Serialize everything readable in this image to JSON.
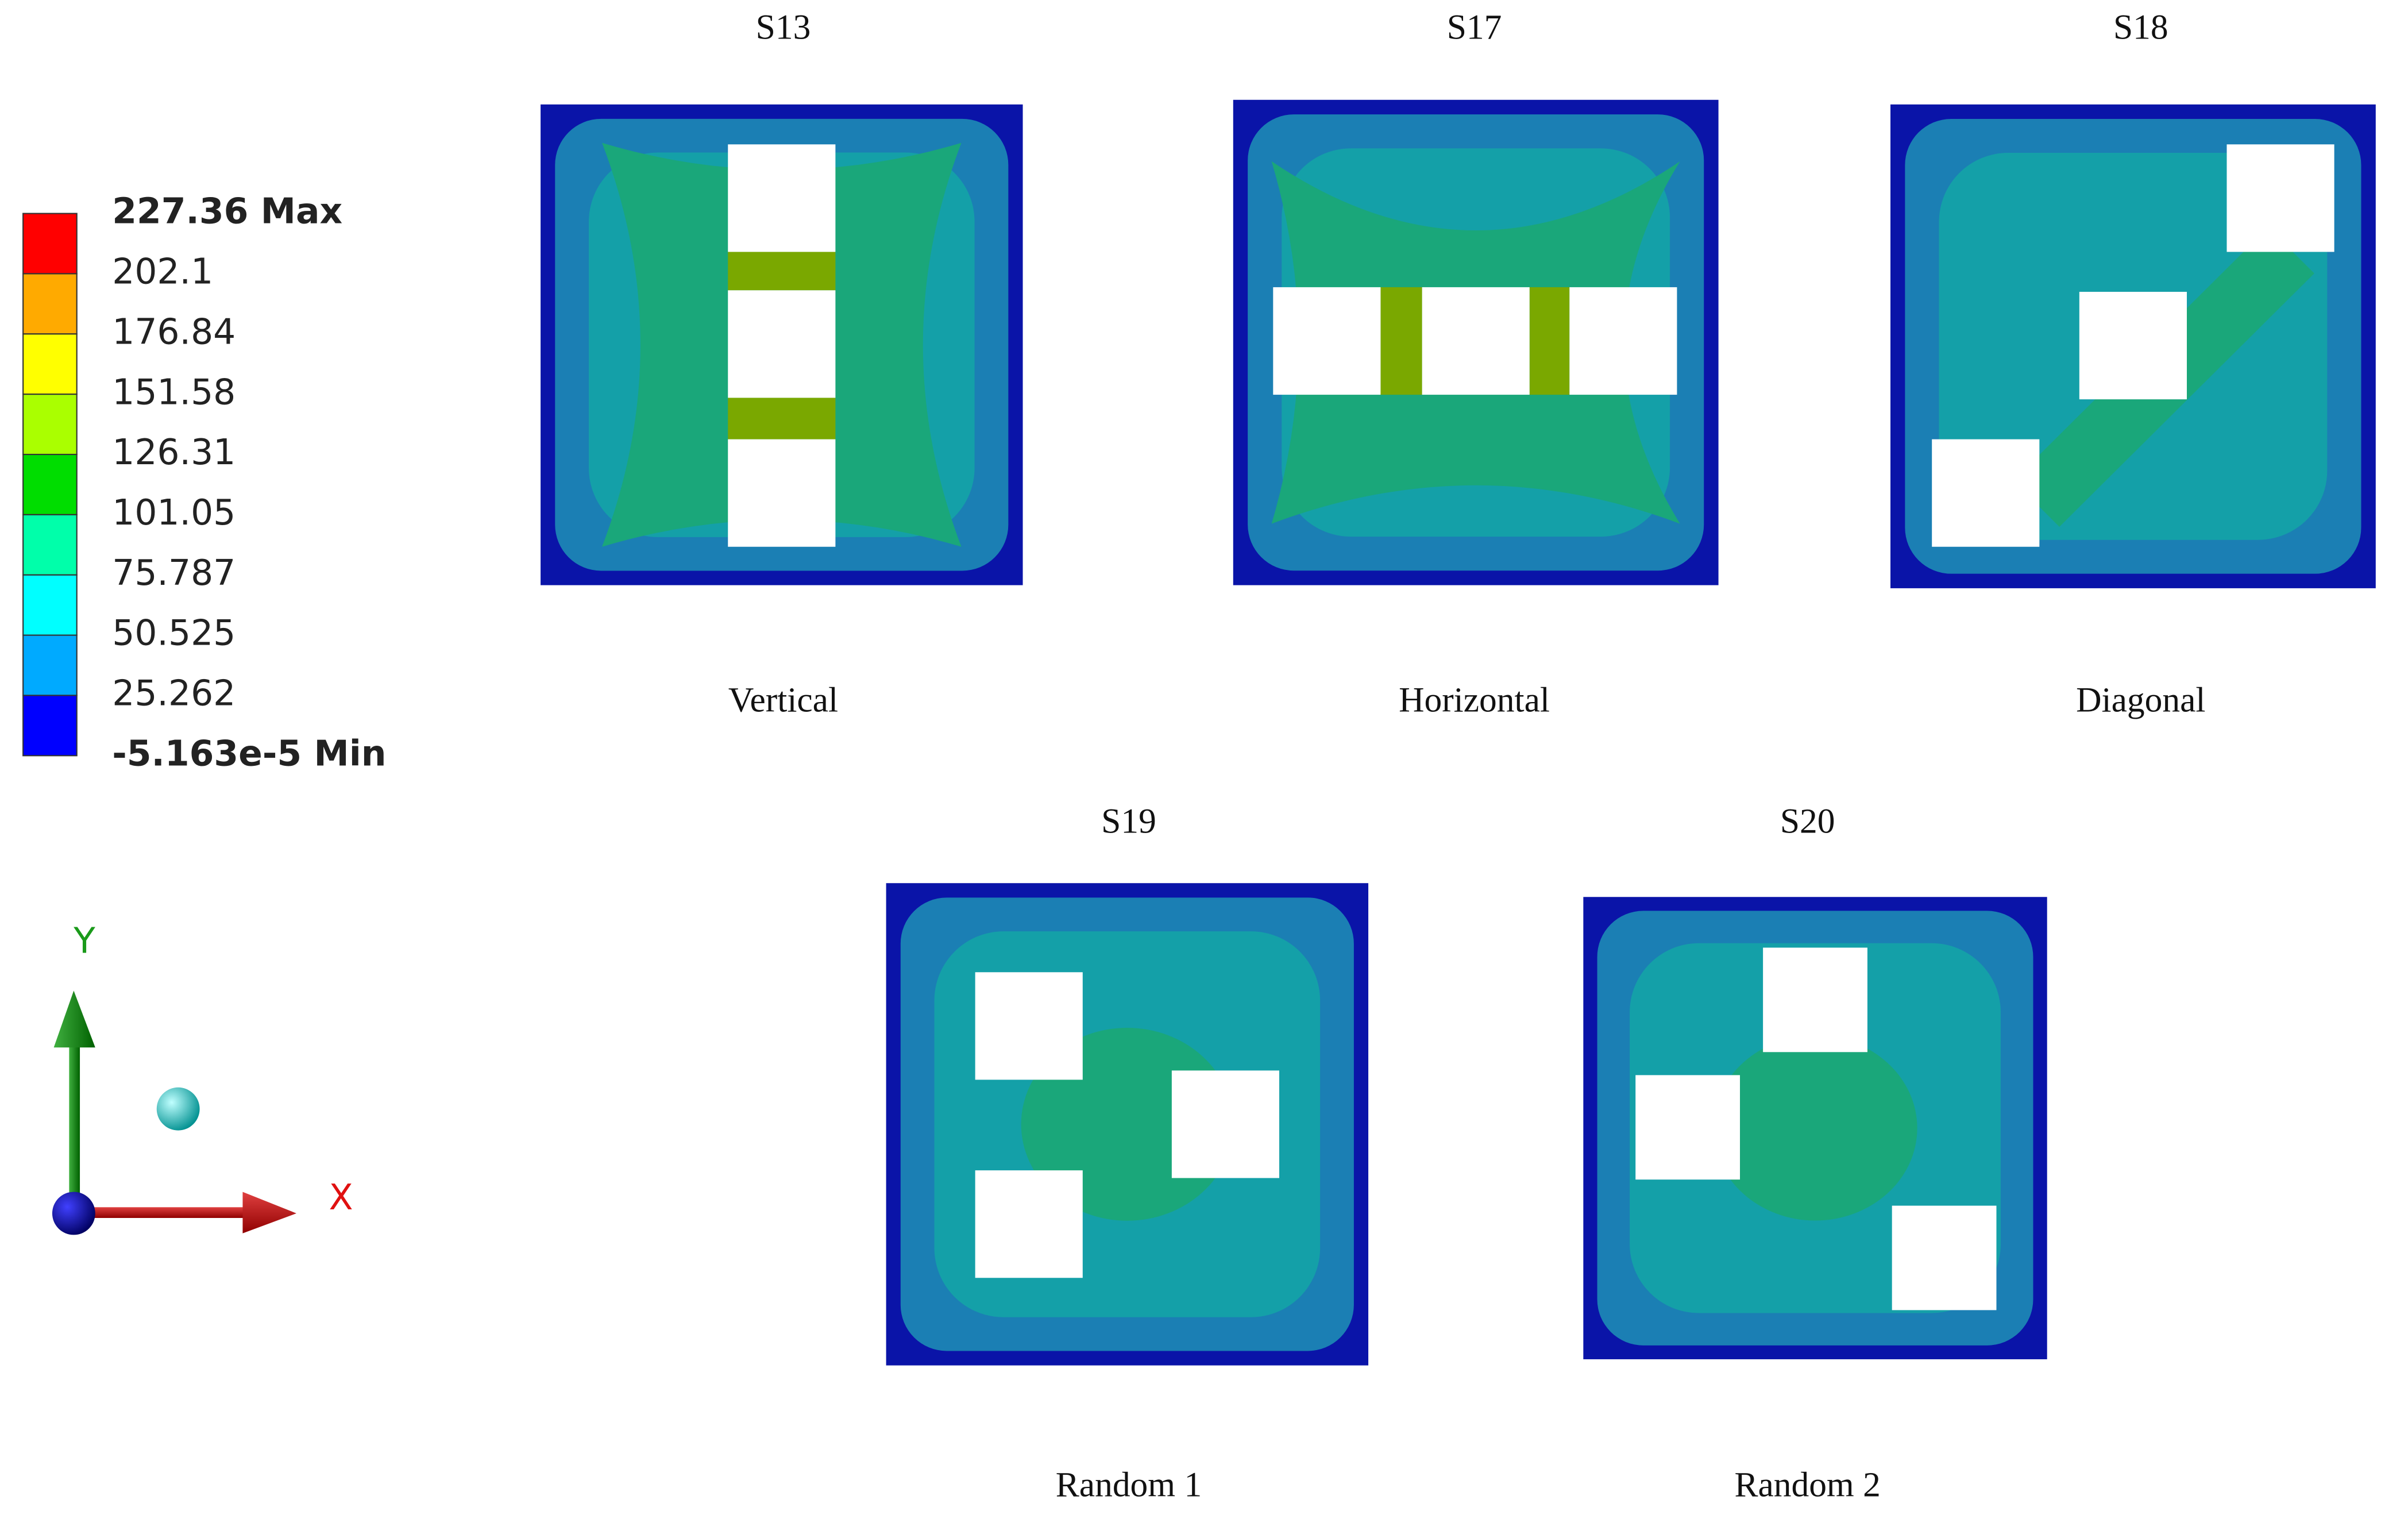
{
  "legend": {
    "labels": [
      "227.36 Max",
      "202.1",
      "176.84",
      "151.58",
      "126.31",
      "101.05",
      "75.787",
      "50.525",
      "25.262",
      "-5.163e-5 Min"
    ],
    "colors": [
      "#ff0000",
      "#ffaa00",
      "#ffff00",
      "#aaff00",
      "#00dd00",
      "#00ffaa",
      "#00ffff",
      "#00aaff",
      "#0000ff"
    ]
  },
  "axes": {
    "x": "X",
    "y": "Y"
  },
  "panels": [
    {
      "title": "S13",
      "caption": "Vertical"
    },
    {
      "title": "S17",
      "caption": "Horizontal"
    },
    {
      "title": "S18",
      "caption": "Diagonal"
    },
    {
      "title": "S19",
      "caption": "Random 1"
    },
    {
      "title": "S20",
      "caption": "Random 2"
    }
  ]
}
